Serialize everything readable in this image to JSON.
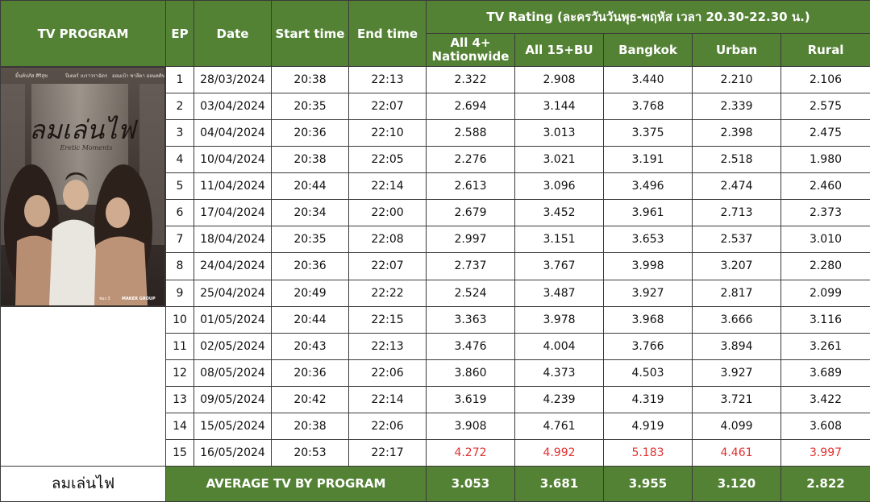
{
  "header": {
    "program": "TV PROGRAM",
    "ep": "EP",
    "date": "Date",
    "start": "Start time",
    "end": "End time",
    "rating_title": "TV Rating  (ละครวันวันพุธ-พฤหัส เวลา 20.30-22.30 น.)",
    "col_all4_line1": "All 4+",
    "col_all4_line2": "Nationwide",
    "col_all15": "All 15+BU",
    "col_bangkok": "Bangkok",
    "col_urban": "Urban",
    "col_rural": "Rural"
  },
  "poster": {
    "cast_left": "มิ้นท์ปภัส ศิริสุข",
    "cast_mid": "ปีเตอร์ เบราวราฉัตร",
    "cast_right": "ออมเบ้า ชาลีดา ออนคติน",
    "title_thai": "ลมเล่นไฟ",
    "title_en": "Eretic Moments",
    "channel": "ช่อง 3",
    "logo": "MAKER GROUP"
  },
  "rows": [
    {
      "ep": "1",
      "date": "28/03/2024",
      "start": "20:38",
      "end": "22:13",
      "all4": "2.322",
      "all15": "2.908",
      "bkk": "3.440",
      "urban": "2.210",
      "rural": "2.106"
    },
    {
      "ep": "2",
      "date": "03/04/2024",
      "start": "20:35",
      "end": "22:07",
      "all4": "2.694",
      "all15": "3.144",
      "bkk": "3.768",
      "urban": "2.339",
      "rural": "2.575"
    },
    {
      "ep": "3",
      "date": "04/04/2024",
      "start": "20:36",
      "end": "22:10",
      "all4": "2.588",
      "all15": "3.013",
      "bkk": "3.375",
      "urban": "2.398",
      "rural": "2.475"
    },
    {
      "ep": "4",
      "date": "10/04/2024",
      "start": "20:38",
      "end": "22:05",
      "all4": "2.276",
      "all15": "3.021",
      "bkk": "3.191",
      "urban": "2.518",
      "rural": "1.980"
    },
    {
      "ep": "5",
      "date": "11/04/2024",
      "start": "20:44",
      "end": "22:14",
      "all4": "2.613",
      "all15": "3.096",
      "bkk": "3.496",
      "urban": "2.474",
      "rural": "2.460"
    },
    {
      "ep": "6",
      "date": "17/04/2024",
      "start": "20:34",
      "end": "22:00",
      "all4": "2.679",
      "all15": "3.452",
      "bkk": "3.961",
      "urban": "2.713",
      "rural": "2.373"
    },
    {
      "ep": "7",
      "date": "18/04/2024",
      "start": "20:35",
      "end": "22:08",
      "all4": "2.997",
      "all15": "3.151",
      "bkk": "3.653",
      "urban": "2.537",
      "rural": "3.010"
    },
    {
      "ep": "8",
      "date": "24/04/2024",
      "start": "20:36",
      "end": "22:07",
      "all4": "2.737",
      "all15": "3.767",
      "bkk": "3.998",
      "urban": "3.207",
      "rural": "2.280"
    },
    {
      "ep": "9",
      "date": "25/04/2024",
      "start": "20:49",
      "end": "22:22",
      "all4": "2.524",
      "all15": "3.487",
      "bkk": "3.927",
      "urban": "2.817",
      "rural": "2.099"
    },
    {
      "ep": "10",
      "date": "01/05/2024",
      "start": "20:44",
      "end": "22:15",
      "all4": "3.363",
      "all15": "3.978",
      "bkk": "3.968",
      "urban": "3.666",
      "rural": "3.116"
    },
    {
      "ep": "11",
      "date": "02/05/2024",
      "start": "20:43",
      "end": "22:13",
      "all4": "3.476",
      "all15": "4.004",
      "bkk": "3.766",
      "urban": "3.894",
      "rural": "3.261"
    },
    {
      "ep": "12",
      "date": "08/05/2024",
      "start": "20:36",
      "end": "22:06",
      "all4": "3.860",
      "all15": "4.373",
      "bkk": "4.503",
      "urban": "3.927",
      "rural": "3.689"
    },
    {
      "ep": "13",
      "date": "09/05/2024",
      "start": "20:42",
      "end": "22:14",
      "all4": "3.619",
      "all15": "4.239",
      "bkk": "4.319",
      "urban": "3.721",
      "rural": "3.422"
    },
    {
      "ep": "14",
      "date": "15/05/2024",
      "start": "20:38",
      "end": "22:06",
      "all4": "3.908",
      "all15": "4.761",
      "bkk": "4.919",
      "urban": "4.099",
      "rural": "3.608"
    },
    {
      "ep": "15",
      "date": "16/05/2024",
      "start": "20:53",
      "end": "22:17",
      "all4": "4.272",
      "all15": "4.992",
      "bkk": "5.183",
      "urban": "4.461",
      "rural": "3.997"
    }
  ],
  "highlight_color": "#e03030",
  "header_color": "#548235",
  "footer": {
    "program_name": "ลมเล่นไฟ",
    "label": "AVERAGE TV BY PROGRAM",
    "all4": "3.053",
    "all15": "3.681",
    "bkk": "3.955",
    "urban": "3.120",
    "rural": "2.822"
  }
}
